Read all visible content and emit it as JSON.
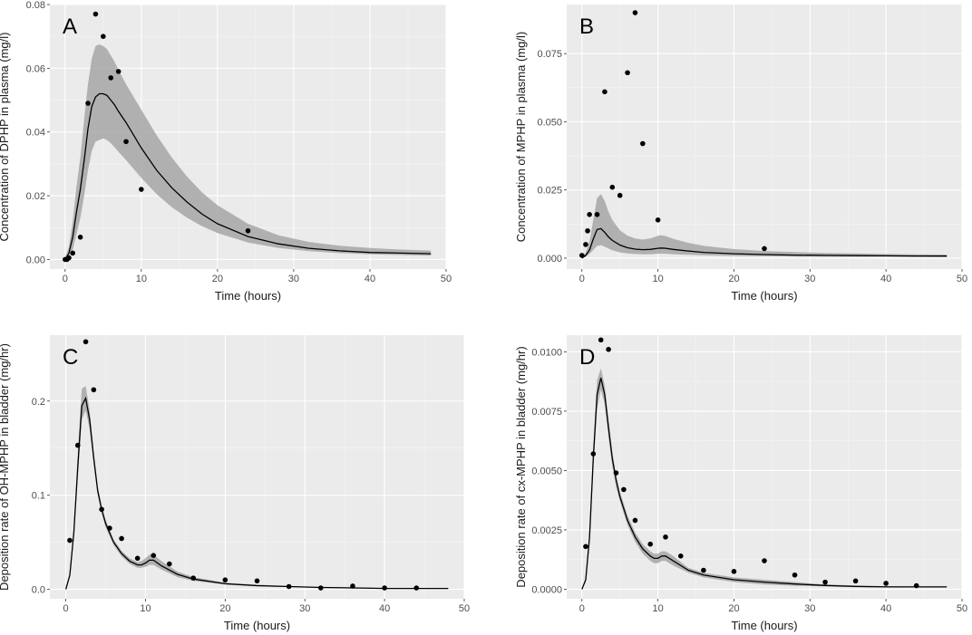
{
  "chart_data": [
    {
      "type": "line",
      "panel_label": "A",
      "title": "",
      "xlabel": "Time (hours)",
      "ylabel": "Concentration of DPHP in plasma (mg/l)",
      "xlim": [
        -2,
        50
      ],
      "ylim": [
        -0.003,
        0.08
      ],
      "x_ticks": [
        0,
        10,
        20,
        30,
        40,
        50
      ],
      "y_ticks": [
        0,
        0.02,
        0.04,
        0.06,
        0.08
      ],
      "y_tick_labels": [
        "0.00",
        "0.02",
        "0.04",
        "0.06",
        "0.08"
      ],
      "median_line": {
        "x": [
          0,
          0.5,
          1,
          1.5,
          2,
          2.5,
          3,
          3.5,
          4,
          4.5,
          5,
          5.5,
          6,
          6.5,
          7,
          8,
          9,
          10,
          12,
          14,
          16,
          18,
          20,
          24,
          28,
          32,
          36,
          40,
          44,
          48
        ],
        "y": [
          0,
          0.002,
          0.007,
          0.015,
          0.022,
          0.031,
          0.041,
          0.048,
          0.051,
          0.052,
          0.052,
          0.0515,
          0.05,
          0.0485,
          0.0465,
          0.043,
          0.039,
          0.035,
          0.028,
          0.0225,
          0.018,
          0.0142,
          0.0112,
          0.0072,
          0.0049,
          0.0035,
          0.0027,
          0.0022,
          0.002,
          0.0018
        ]
      },
      "ribbon_upper": [
        0.0005,
        0.004,
        0.012,
        0.023,
        0.032,
        0.044,
        0.055,
        0.063,
        0.067,
        0.0675,
        0.067,
        0.066,
        0.064,
        0.062,
        0.0595,
        0.055,
        0.051,
        0.047,
        0.039,
        0.032,
        0.026,
        0.021,
        0.017,
        0.0112,
        0.0076,
        0.0055,
        0.0043,
        0.0036,
        0.0031,
        0.0028
      ],
      "ribbon_lower": [
        0,
        0.001,
        0.003,
        0.008,
        0.013,
        0.02,
        0.028,
        0.034,
        0.037,
        0.0375,
        0.038,
        0.0375,
        0.0365,
        0.0352,
        0.0338,
        0.0312,
        0.0284,
        0.0256,
        0.0205,
        0.0164,
        0.0131,
        0.0104,
        0.0083,
        0.0053,
        0.0036,
        0.0026,
        0.002,
        0.0016,
        0.0014,
        0.0012
      ],
      "observed": {
        "x": [
          0,
          0.25,
          0.5,
          1,
          2,
          3,
          4,
          5,
          6,
          7,
          8,
          10,
          24
        ],
        "y": [
          0,
          0,
          0.0005,
          0.002,
          0.007,
          0.049,
          0.077,
          0.07,
          0.057,
          0.059,
          0.037,
          0.022,
          0.009
        ]
      }
    },
    {
      "type": "line",
      "panel_label": "B",
      "title": "",
      "xlabel": "Time (hours)",
      "ylabel": "Concentration of MPHP in plasma (mg/l)",
      "xlim": [
        -2,
        50
      ],
      "ylim": [
        -0.004,
        0.093
      ],
      "x_ticks": [
        0,
        10,
        20,
        30,
        40,
        50
      ],
      "y_ticks": [
        0,
        0.025,
        0.05,
        0.075
      ],
      "y_tick_labels": [
        "0.000",
        "0.025",
        "0.050",
        "0.075"
      ],
      "median_line": {
        "x": [
          0,
          0.5,
          1,
          1.5,
          2,
          2.5,
          3,
          3.5,
          4,
          5,
          6,
          7,
          8,
          9,
          10,
          10.5,
          11,
          12,
          14,
          16,
          20,
          24,
          28,
          32,
          36,
          40,
          44,
          48
        ],
        "y": [
          0,
          0.001,
          0.003,
          0.007,
          0.0105,
          0.0108,
          0.0095,
          0.0078,
          0.0065,
          0.0048,
          0.0038,
          0.0033,
          0.0031,
          0.0032,
          0.0036,
          0.0037,
          0.0036,
          0.0032,
          0.0026,
          0.0021,
          0.0016,
          0.0013,
          0.0011,
          0.001,
          0.0009,
          0.00085,
          0.0008,
          0.00075
        ]
      },
      "ribbon_upper": [
        0.0003,
        0.002,
        0.006,
        0.014,
        0.022,
        0.0235,
        0.021,
        0.017,
        0.014,
        0.0102,
        0.0082,
        0.0072,
        0.0068,
        0.0072,
        0.0082,
        0.0084,
        0.0081,
        0.0071,
        0.0056,
        0.0045,
        0.0033,
        0.0026,
        0.0022,
        0.0019,
        0.0017,
        0.0015,
        0.0014,
        0.0013
      ],
      "ribbon_lower": [
        0,
        0.0005,
        0.0015,
        0.003,
        0.0045,
        0.0047,
        0.0042,
        0.0035,
        0.0029,
        0.0021,
        0.0017,
        0.0015,
        0.0014,
        0.0014,
        0.0016,
        0.0016,
        0.0016,
        0.0014,
        0.0012,
        0.001,
        0.0008,
        0.0007,
        0.0006,
        0.0005,
        0.0005,
        0.0005,
        0.0004,
        0.0004
      ],
      "observed": {
        "x": [
          0,
          0.5,
          0.75,
          1,
          2,
          3,
          4,
          5,
          6,
          7,
          8,
          10,
          24
        ],
        "y": [
          0.001,
          0.005,
          0.01,
          0.016,
          0.016,
          0.061,
          0.026,
          0.023,
          0.068,
          0.09,
          0.042,
          0.014,
          0.0035
        ]
      }
    },
    {
      "type": "line",
      "panel_label": "C",
      "title": "",
      "xlabel": "Time (hours)",
      "ylabel": "Deposition rate of OH-MPHP in bladder (mg/hr)",
      "xlim": [
        -2,
        50
      ],
      "ylim": [
        -0.01,
        0.27
      ],
      "x_ticks": [
        0,
        10,
        20,
        30,
        40,
        50
      ],
      "y_ticks": [
        0,
        0.1,
        0.2
      ],
      "y_tick_labels": [
        "0.0",
        "0.1",
        "0.2"
      ],
      "median_line": {
        "x": [
          0,
          0.5,
          1,
          1.5,
          2,
          2.5,
          3,
          3.5,
          4,
          4.5,
          5,
          6,
          7,
          8,
          9,
          9.5,
          10,
          10.5,
          11,
          12,
          14,
          16,
          20,
          24,
          28,
          32,
          36,
          40,
          44,
          48
        ],
        "y": [
          0,
          0.015,
          0.06,
          0.13,
          0.195,
          0.203,
          0.18,
          0.14,
          0.105,
          0.085,
          0.07,
          0.05,
          0.038,
          0.03,
          0.026,
          0.026,
          0.028,
          0.031,
          0.031,
          0.025,
          0.016,
          0.011,
          0.006,
          0.004,
          0.003,
          0.002,
          0.0015,
          0.001,
          0.001,
          0.001
        ]
      },
      "ribbon_upper": [
        0.0005,
        0.017,
        0.066,
        0.145,
        0.213,
        0.216,
        0.19,
        0.147,
        0.11,
        0.089,
        0.074,
        0.053,
        0.041,
        0.033,
        0.029,
        0.03,
        0.033,
        0.037,
        0.037,
        0.03,
        0.019,
        0.013,
        0.007,
        0.005,
        0.0035,
        0.0025,
        0.002,
        0.0015,
        0.0012,
        0.0012
      ],
      "ribbon_lower": [
        0,
        0.013,
        0.054,
        0.12,
        0.18,
        0.19,
        0.17,
        0.133,
        0.1,
        0.081,
        0.066,
        0.047,
        0.035,
        0.027,
        0.023,
        0.023,
        0.024,
        0.026,
        0.026,
        0.021,
        0.013,
        0.009,
        0.005,
        0.003,
        0.0025,
        0.0015,
        0.001,
        0.0008,
        0.0008,
        0.0008
      ],
      "observed": {
        "x": [
          0.5,
          1.5,
          2.5,
          3.5,
          4.5,
          5.5,
          7,
          9,
          11,
          13,
          16,
          20,
          24,
          28,
          32,
          36,
          40,
          44
        ],
        "y": [
          0.052,
          0.153,
          0.263,
          0.212,
          0.085,
          0.065,
          0.054,
          0.033,
          0.036,
          0.027,
          0.012,
          0.01,
          0.009,
          0.003,
          0.0015,
          0.0035,
          0.0015,
          0.0015
        ]
      }
    },
    {
      "type": "line",
      "panel_label": "D",
      "title": "",
      "xlabel": "Time (hours)",
      "ylabel": "Deposition rate of cx-MPHP in bladder (mg/hr)",
      "xlim": [
        -2,
        50
      ],
      "ylim": [
        -0.0004,
        0.0107
      ],
      "x_ticks": [
        0,
        10,
        20,
        30,
        40,
        50
      ],
      "y_ticks": [
        0,
        0.0025,
        0.005,
        0.0075,
        0.01
      ],
      "y_tick_labels": [
        "0.0000",
        "0.0025",
        "0.0050",
        "0.0075",
        "0.0100"
      ],
      "median_line": {
        "x": [
          0,
          0.5,
          1,
          1.5,
          2,
          2.5,
          3,
          3.5,
          4,
          4.5,
          5,
          6,
          7,
          8,
          9,
          9.5,
          10,
          10.5,
          11,
          12,
          14,
          16,
          20,
          24,
          28,
          32,
          36,
          40,
          44,
          48
        ],
        "y": [
          0,
          0.0004,
          0.0022,
          0.0055,
          0.0082,
          0.0089,
          0.0082,
          0.0068,
          0.0055,
          0.0046,
          0.0039,
          0.0029,
          0.0022,
          0.0017,
          0.0014,
          0.0013,
          0.0013,
          0.0014,
          0.0014,
          0.0012,
          0.0008,
          0.0006,
          0.0004,
          0.0003,
          0.00022,
          0.00016,
          0.00012,
          0.0001,
          0.0001,
          0.0001
        ]
      },
      "ribbon_upper": [
        2e-05,
        0.0005,
        0.0025,
        0.006,
        0.0088,
        0.0093,
        0.0086,
        0.0072,
        0.0058,
        0.0048,
        0.0041,
        0.0031,
        0.0024,
        0.0019,
        0.0016,
        0.0015,
        0.0015,
        0.0016,
        0.0016,
        0.0014,
        0.0009,
        0.0007,
        0.0005,
        0.0004,
        0.0003,
        0.0002,
        0.00016,
        0.00013,
        0.00012,
        0.00012
      ],
      "ribbon_lower": [
        0,
        0.0003,
        0.0019,
        0.005,
        0.0076,
        0.0084,
        0.0078,
        0.0064,
        0.0052,
        0.0043,
        0.0037,
        0.0027,
        0.002,
        0.0015,
        0.0012,
        0.0011,
        0.0011,
        0.0012,
        0.0012,
        0.001,
        0.0007,
        0.0005,
        0.0003,
        0.0002,
        0.00015,
        0.00012,
        9e-05,
        8e-05,
        8e-05,
        8e-05
      ],
      "observed": {
        "x": [
          0.5,
          1.5,
          2.5,
          3.5,
          4.5,
          5.5,
          7,
          9,
          11,
          13,
          16,
          20,
          24,
          28,
          32,
          36,
          40,
          44
        ],
        "y": [
          0.0018,
          0.0057,
          0.0105,
          0.0101,
          0.0049,
          0.0042,
          0.0029,
          0.0019,
          0.0022,
          0.0014,
          0.0008,
          0.00075,
          0.0012,
          0.0006,
          0.0003,
          0.00035,
          0.00025,
          0.00015
        ]
      }
    }
  ]
}
